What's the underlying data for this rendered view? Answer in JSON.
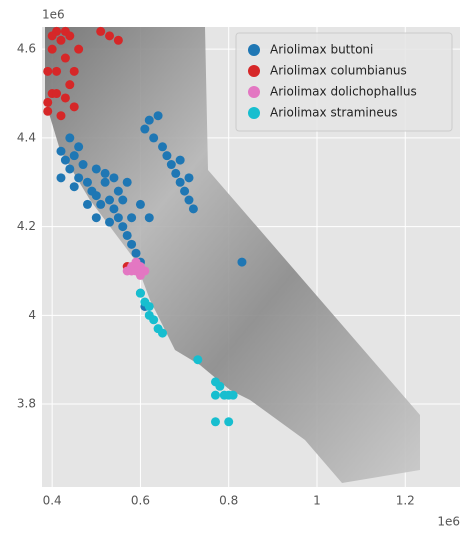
{
  "chart_data": {
    "type": "scatter",
    "x_offset_label": "1e6",
    "y_offset_label": "1e6",
    "xlim": [
      0.377,
      1.324
    ],
    "ylim": [
      3.613,
      4.65
    ],
    "xticks": [
      0.4,
      0.6,
      0.8,
      1.0,
      1.2
    ],
    "yticks": [
      3.8,
      4.0,
      4.2,
      4.4,
      4.6
    ],
    "grid": true,
    "legend": "upper right",
    "series": [
      {
        "name": "Ariolimax buttoni",
        "color": "#1f77b4",
        "x": [
          0.42,
          0.43,
          0.44,
          0.45,
          0.46,
          0.47,
          0.48,
          0.49,
          0.5,
          0.51,
          0.52,
          0.53,
          0.54,
          0.55,
          0.56,
          0.57,
          0.58,
          0.59,
          0.6,
          0.44,
          0.46,
          0.5,
          0.52,
          0.48,
          0.5,
          0.53,
          0.55,
          0.57,
          0.6,
          0.62,
          0.42,
          0.45,
          0.54,
          0.56,
          0.58,
          0.61,
          0.62,
          0.63,
          0.64,
          0.65,
          0.66,
          0.67,
          0.68,
          0.69,
          0.7,
          0.71,
          0.72,
          0.69,
          0.71,
          0.83,
          0.6,
          0.61
        ],
        "values": [
          4.37,
          4.35,
          4.33,
          4.36,
          4.31,
          4.34,
          4.3,
          4.28,
          4.27,
          4.25,
          4.3,
          4.26,
          4.24,
          4.22,
          4.2,
          4.18,
          4.16,
          4.14,
          4.12,
          4.4,
          4.38,
          4.33,
          4.32,
          4.25,
          4.22,
          4.21,
          4.28,
          4.3,
          4.25,
          4.22,
          4.31,
          4.29,
          4.31,
          4.26,
          4.22,
          4.42,
          4.44,
          4.4,
          4.45,
          4.38,
          4.36,
          4.34,
          4.32,
          4.3,
          4.28,
          4.26,
          4.24,
          4.35,
          4.31,
          4.12,
          4.05,
          4.02
        ]
      },
      {
        "name": "Ariolimax columbianus",
        "color": "#d62728",
        "x": [
          0.39,
          0.4,
          0.41,
          0.4,
          0.42,
          0.41,
          0.43,
          0.44,
          0.45,
          0.42,
          0.39,
          0.4,
          0.43,
          0.44,
          0.46,
          0.45,
          0.41,
          0.43,
          0.51,
          0.53,
          0.55,
          0.57,
          0.39
        ],
        "values": [
          4.48,
          4.5,
          4.55,
          4.6,
          4.62,
          4.64,
          4.58,
          4.52,
          4.47,
          4.45,
          4.55,
          4.63,
          4.64,
          4.63,
          4.6,
          4.55,
          4.5,
          4.49,
          4.64,
          4.63,
          4.62,
          4.11,
          4.46
        ]
      },
      {
        "name": "Ariolimax dolichophallus",
        "color": "#e377c2",
        "x": [
          0.58,
          0.59,
          0.6,
          0.61,
          0.58,
          0.59,
          0.6,
          0.57
        ],
        "values": [
          4.11,
          4.1,
          4.11,
          4.1,
          4.1,
          4.12,
          4.09,
          4.1
        ]
      },
      {
        "name": "Ariolimax stramineus",
        "color": "#17becf",
        "x": [
          0.6,
          0.61,
          0.62,
          0.63,
          0.64,
          0.65,
          0.62,
          0.73,
          0.77,
          0.78,
          0.77,
          0.79,
          0.8,
          0.81,
          0.77,
          0.8
        ],
        "values": [
          4.05,
          4.03,
          4.0,
          3.99,
          3.97,
          3.96,
          4.02,
          3.9,
          3.85,
          3.84,
          3.82,
          3.82,
          3.82,
          3.82,
          3.76,
          3.76
        ]
      }
    ]
  }
}
